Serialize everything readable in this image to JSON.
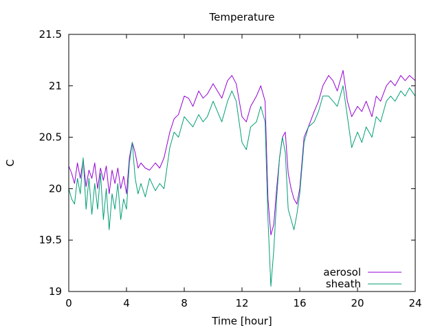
{
  "chart_data": {
    "type": "line",
    "title": "Temperature",
    "xlabel": "Time [hour]",
    "ylabel": "C",
    "xlim": [
      0,
      24
    ],
    "ylim": [
      19,
      21.5
    ],
    "xticks": [
      0,
      4,
      8,
      12,
      16,
      20,
      24
    ],
    "yticks": [
      19,
      19.5,
      20,
      20.5,
      21,
      21.5
    ],
    "grid": false,
    "legend_position": "bottom-right",
    "series": [
      {
        "name": "aerosol",
        "color": "#9400d3",
        "x": [
          0,
          0.2,
          0.4,
          0.6,
          0.8,
          1.0,
          1.2,
          1.4,
          1.6,
          1.8,
          2.0,
          2.2,
          2.4,
          2.6,
          2.8,
          3.0,
          3.2,
          3.4,
          3.6,
          3.8,
          4.0,
          4.2,
          4.4,
          4.6,
          4.8,
          5.0,
          5.3,
          5.6,
          6.0,
          6.3,
          6.6,
          7.0,
          7.3,
          7.6,
          8.0,
          8.3,
          8.6,
          9.0,
          9.3,
          9.6,
          10.0,
          10.3,
          10.6,
          11.0,
          11.3,
          11.6,
          12.0,
          12.3,
          12.6,
          13.0,
          13.3,
          13.6,
          13.8,
          14.0,
          14.2,
          14.4,
          14.6,
          14.8,
          15.0,
          15.2,
          15.4,
          15.6,
          15.8,
          16.0,
          16.3,
          16.6,
          17.0,
          17.3,
          17.6,
          18.0,
          18.3,
          18.6,
          19.0,
          19.3,
          19.6,
          20.0,
          20.3,
          20.6,
          21.0,
          21.3,
          21.6,
          22.0,
          22.3,
          22.6,
          23.0,
          23.3,
          23.6,
          24.0
        ],
        "values": [
          20.22,
          20.15,
          20.05,
          20.25,
          20.1,
          20.28,
          20.02,
          20.18,
          20.1,
          20.25,
          20.0,
          20.2,
          20.08,
          20.22,
          19.95,
          20.18,
          20.05,
          20.2,
          20.0,
          20.12,
          19.95,
          20.3,
          20.45,
          20.35,
          20.2,
          20.25,
          20.2,
          20.18,
          20.25,
          20.2,
          20.3,
          20.55,
          20.68,
          20.72,
          20.9,
          20.88,
          20.8,
          20.95,
          20.88,
          20.92,
          21.02,
          20.95,
          20.88,
          21.05,
          21.1,
          21.02,
          20.7,
          20.65,
          20.8,
          20.9,
          21.0,
          20.85,
          19.9,
          19.55,
          19.65,
          20.0,
          20.3,
          20.5,
          20.55,
          20.15,
          20.0,
          19.9,
          19.85,
          20.0,
          20.5,
          20.6,
          20.75,
          20.85,
          21.0,
          21.1,
          21.05,
          20.95,
          21.15,
          20.85,
          20.7,
          20.8,
          20.75,
          20.85,
          20.7,
          20.9,
          20.85,
          21.0,
          21.05,
          21.0,
          21.1,
          21.05,
          21.1,
          21.05
        ]
      },
      {
        "name": "sheath",
        "color": "#009e73",
        "x": [
          0,
          0.2,
          0.4,
          0.6,
          0.8,
          1.0,
          1.2,
          1.4,
          1.6,
          1.8,
          2.0,
          2.2,
          2.4,
          2.6,
          2.8,
          3.0,
          3.2,
          3.4,
          3.6,
          3.8,
          4.0,
          4.2,
          4.4,
          4.6,
          4.8,
          5.0,
          5.3,
          5.6,
          6.0,
          6.3,
          6.6,
          7.0,
          7.3,
          7.6,
          8.0,
          8.3,
          8.6,
          9.0,
          9.3,
          9.6,
          10.0,
          10.3,
          10.6,
          11.0,
          11.3,
          11.6,
          12.0,
          12.3,
          12.6,
          13.0,
          13.3,
          13.6,
          13.8,
          14.0,
          14.2,
          14.4,
          14.6,
          14.8,
          15.0,
          15.2,
          15.4,
          15.6,
          15.8,
          16.0,
          16.3,
          16.6,
          17.0,
          17.3,
          17.6,
          18.0,
          18.3,
          18.6,
          19.0,
          19.3,
          19.6,
          20.0,
          20.3,
          20.6,
          21.0,
          21.3,
          21.6,
          22.0,
          22.3,
          22.6,
          23.0,
          23.3,
          23.6,
          24.0
        ],
        "values": [
          20.0,
          19.9,
          19.85,
          20.1,
          19.95,
          20.3,
          19.8,
          20.1,
          19.75,
          20.05,
          19.8,
          20.15,
          19.7,
          20.0,
          19.6,
          19.95,
          19.8,
          20.05,
          19.7,
          19.9,
          19.8,
          20.25,
          20.45,
          20.1,
          19.95,
          20.05,
          19.92,
          20.1,
          19.98,
          20.05,
          20.0,
          20.4,
          20.55,
          20.5,
          20.7,
          20.65,
          20.6,
          20.72,
          20.65,
          20.7,
          20.85,
          20.75,
          20.65,
          20.85,
          20.95,
          20.85,
          20.45,
          20.38,
          20.6,
          20.65,
          20.8,
          20.65,
          19.7,
          19.05,
          19.4,
          19.9,
          20.3,
          20.5,
          20.35,
          19.8,
          19.7,
          19.6,
          19.75,
          19.95,
          20.45,
          20.6,
          20.65,
          20.75,
          20.9,
          20.9,
          20.85,
          20.8,
          21.0,
          20.7,
          20.4,
          20.55,
          20.45,
          20.6,
          20.5,
          20.7,
          20.65,
          20.85,
          20.9,
          20.85,
          20.95,
          20.9,
          20.98,
          20.9
        ]
      }
    ]
  }
}
